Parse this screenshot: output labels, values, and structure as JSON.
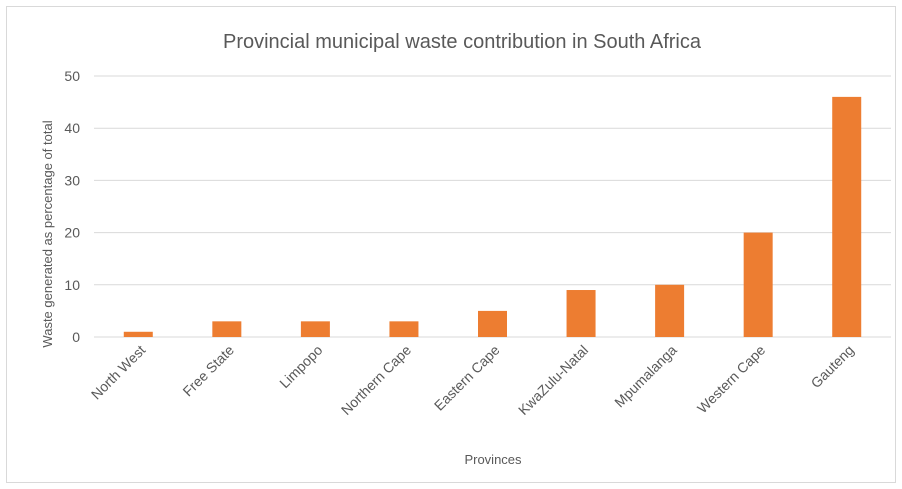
{
  "chart_data": {
    "type": "bar",
    "title": "Provincial municipal waste contribution in South Africa",
    "xlabel": "Provinces",
    "ylabel": "Waste generated as percentage of total",
    "categories": [
      "North West",
      "Free State",
      "Limpopo",
      "Northern Cape",
      "Eastern Cape",
      "KwaZulu-Natal",
      "Mpumalanga",
      "Western Cape",
      "Gauteng"
    ],
    "values": [
      1,
      3,
      3,
      3,
      5,
      9,
      10,
      20,
      46
    ],
    "ylim": [
      0,
      50
    ],
    "yticks": [
      0,
      10,
      20,
      30,
      40,
      50
    ],
    "grid": true,
    "legend": "none",
    "colors": {
      "bar": "#ED7D31",
      "grid": "#D9D9D9",
      "text": "#595959"
    }
  }
}
